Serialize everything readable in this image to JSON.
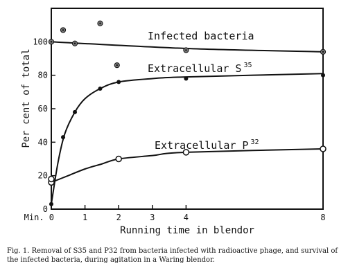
{
  "chart_data": {
    "type": "line",
    "xlabel": "Running time in blendor",
    "ylabel": "Per cent of total",
    "xlim": [
      0,
      8
    ],
    "ylim": [
      0,
      120
    ],
    "x_ticks": [
      "Min. 0",
      "1",
      "2",
      "3",
      "4",
      "8"
    ],
    "x_tick_values": [
      0,
      1,
      2,
      3,
      4,
      8
    ],
    "y_ticks": [
      "0",
      "20",
      "40",
      "60",
      "80",
      "100"
    ],
    "y_tick_values": [
      0,
      20,
      40,
      60,
      80,
      100
    ],
    "axis_break_x": [
      4,
      8
    ],
    "series": [
      {
        "name": "Infected bacteria",
        "label_main": "Infected bacteria",
        "label_sup": "",
        "marker": "circle-dot",
        "x": [
          0,
          0.7,
          4,
          8
        ],
        "y": [
          100,
          99,
          95,
          94
        ],
        "curve_x": [
          0,
          4,
          8
        ],
        "curve_y": [
          100,
          96,
          94
        ],
        "extra_points": {
          "x": [
            0.35,
            1.45,
            1.95
          ],
          "y": [
            107,
            111,
            86
          ]
        }
      },
      {
        "name": "Extracellular S35",
        "label_main": "Extracellular S",
        "label_sup": "35",
        "marker": "filled",
        "x": [
          0,
          0.35,
          0.7,
          1.45,
          2,
          4,
          8
        ],
        "y": [
          3,
          43,
          58,
          72,
          76,
          78,
          80
        ],
        "curve_x": [
          0,
          0.2,
          0.4,
          0.7,
          1.0,
          1.45,
          2,
          3,
          4,
          8
        ],
        "curve_y": [
          3,
          28,
          45,
          58,
          66,
          72,
          76,
          78,
          79,
          81
        ]
      },
      {
        "name": "Extracellular P32",
        "label_main": "Extracellular P",
        "label_sup": "32",
        "marker": "open",
        "x": [
          0,
          0,
          2,
          4,
          8
        ],
        "y": [
          16,
          18,
          30,
          34,
          36
        ],
        "curve_x": [
          0,
          0.5,
          1,
          1.5,
          2,
          3,
          4,
          8
        ],
        "curve_y": [
          16,
          20,
          24,
          27,
          30,
          32,
          34,
          36
        ]
      }
    ]
  },
  "caption": "Fig. 1. Removal of S35 and P32 from bacteria infected with radioactive phage, and survival of the infected bacteria, during agitation in a Waring blendor."
}
